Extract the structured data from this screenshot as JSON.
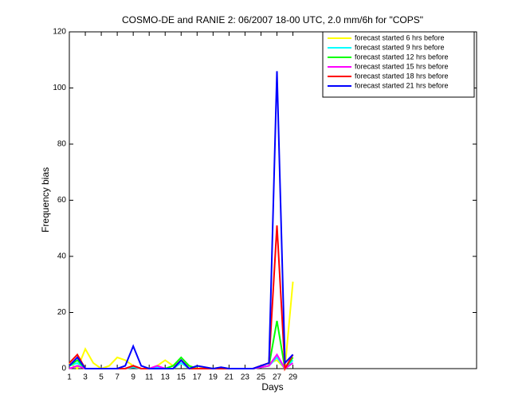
{
  "chart_data": {
    "type": "line",
    "title": "COSMO-DE and RANIE 2: 06/2007 18-00 UTC, 2.0 mm/6h for \"COPS\"",
    "x_label": "Days",
    "y_label": "Frequency bias",
    "x": [
      1,
      2,
      3,
      4,
      5,
      6,
      7,
      8,
      9,
      10,
      11,
      12,
      13,
      14,
      15,
      16,
      17,
      18,
      19,
      20,
      21,
      22,
      23,
      24,
      25,
      26,
      27,
      28,
      29
    ],
    "xlim": [
      1,
      52
    ],
    "xticks": [
      1,
      3,
      5,
      7,
      9,
      11,
      13,
      15,
      17,
      19,
      21,
      23,
      25,
      27,
      29
    ],
    "ylim": [
      0,
      120
    ],
    "yticks": [
      0,
      20,
      40,
      60,
      80,
      100,
      120
    ],
    "legend": "top-right",
    "series": [
      {
        "name": "forecast started 6 hrs before",
        "color": "#ffff00",
        "values": [
          2,
          0,
          7,
          2,
          0,
          1,
          4,
          3,
          1,
          0,
          0,
          1,
          3,
          1,
          3,
          1,
          0,
          0.5,
          0,
          0,
          0,
          0,
          0,
          0,
          1,
          2,
          3,
          0,
          31
        ]
      },
      {
        "name": "forecast started 9 hrs before",
        "color": "#00ffff",
        "values": [
          1,
          2,
          0,
          0,
          0,
          0,
          0,
          0,
          0.5,
          0,
          0,
          0.5,
          0,
          0,
          2,
          0,
          0,
          0,
          0,
          0,
          0,
          0,
          0,
          0,
          0.5,
          1,
          4,
          0,
          3
        ]
      },
      {
        "name": "forecast started 12 hrs before",
        "color": "#00ff00",
        "values": [
          1,
          3,
          0,
          0,
          0,
          0,
          0,
          0,
          1,
          0,
          0,
          0,
          0,
          1,
          4,
          1,
          0,
          0,
          0,
          0,
          0,
          0,
          0,
          0,
          0.5,
          1,
          17,
          0,
          4
        ]
      },
      {
        "name": "forecast started 15 hrs before",
        "color": "#ff00ff",
        "values": [
          0,
          1,
          0,
          0,
          0,
          0,
          0,
          0,
          1,
          0,
          0,
          1,
          0,
          0,
          3,
          0,
          0,
          0,
          0,
          0,
          0,
          0,
          0,
          0,
          0.5,
          1,
          5,
          0,
          2
        ]
      },
      {
        "name": "forecast started 18 hrs before",
        "color": "#ff0000",
        "values": [
          2,
          5,
          0,
          0,
          0,
          0,
          0,
          0,
          1,
          0,
          0,
          0,
          0,
          0,
          3,
          0,
          0,
          0,
          0,
          0,
          0,
          0,
          0,
          0,
          1,
          2,
          51,
          0,
          5
        ]
      },
      {
        "name": "forecast started 21 hrs before",
        "color": "#0000ff",
        "values": [
          1,
          4,
          0,
          0,
          0,
          0,
          0,
          1,
          8,
          1,
          0,
          0,
          0,
          0,
          3,
          0,
          1,
          0.5,
          0,
          0.5,
          0,
          0,
          0,
          0,
          1,
          2,
          106,
          2,
          5
        ]
      }
    ]
  }
}
